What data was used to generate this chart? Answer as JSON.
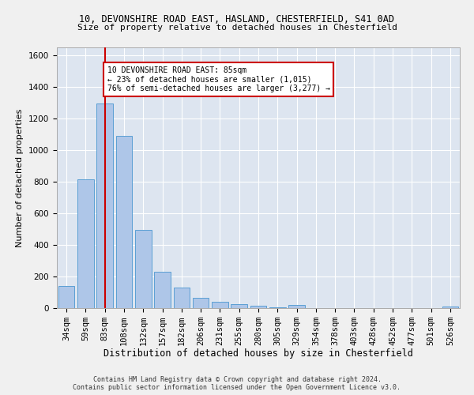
{
  "title_line1": "10, DEVONSHIRE ROAD EAST, HASLAND, CHESTERFIELD, S41 0AD",
  "title_line2": "Size of property relative to detached houses in Chesterfield",
  "xlabel": "Distribution of detached houses by size in Chesterfield",
  "ylabel": "Number of detached properties",
  "footnote": "Contains HM Land Registry data © Crown copyright and database right 2024.\nContains public sector information licensed under the Open Government Licence v3.0.",
  "bar_color": "#aec6e8",
  "bar_edge_color": "#5a9fd4",
  "background_color": "#dde5f0",
  "grid_color": "#ffffff",
  "fig_facecolor": "#f0f0f0",
  "categories": [
    "34sqm",
    "59sqm",
    "83sqm",
    "108sqm",
    "132sqm",
    "157sqm",
    "182sqm",
    "206sqm",
    "231sqm",
    "255sqm",
    "280sqm",
    "305sqm",
    "329sqm",
    "354sqm",
    "378sqm",
    "403sqm",
    "428sqm",
    "452sqm",
    "477sqm",
    "501sqm",
    "526sqm"
  ],
  "values": [
    140,
    815,
    1295,
    1090,
    495,
    232,
    130,
    65,
    38,
    27,
    15,
    5,
    18,
    2,
    0,
    0,
    0,
    0,
    0,
    0,
    12
  ],
  "ylim": [
    0,
    1650
  ],
  "yticks": [
    0,
    200,
    400,
    600,
    800,
    1000,
    1200,
    1400,
    1600
  ],
  "red_line_x": 2,
  "annotation_text": "10 DEVONSHIRE ROAD EAST: 85sqm\n← 23% of detached houses are smaller (1,015)\n76% of semi-detached houses are larger (3,277) →",
  "annotation_box_color": "#ffffff",
  "annotation_box_edge": "#cc0000",
  "red_line_color": "#cc0000",
  "title1_fontsize": 8.5,
  "title2_fontsize": 8.0,
  "ylabel_fontsize": 8.0,
  "xlabel_fontsize": 8.5,
  "tick_fontsize": 7.5,
  "annot_fontsize": 7.0,
  "footnote_fontsize": 6.0
}
